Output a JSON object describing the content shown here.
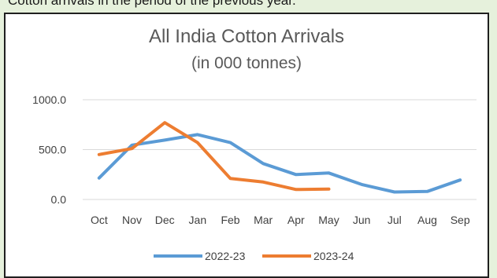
{
  "page": {
    "top_text": "Cotton arrivals in the period of the previous year."
  },
  "chart_data": {
    "type": "line",
    "title": "All India Cotton Arrivals",
    "subtitle": "(in 000 tonnes)",
    "xlabel": "",
    "ylabel": "",
    "categories": [
      "Oct",
      "Nov",
      "Dec",
      "Jan",
      "Feb",
      "Mar",
      "Apr",
      "May",
      "Jun",
      "Jul",
      "Aug",
      "Sep"
    ],
    "ylim": [
      0,
      1000
    ],
    "yticks": [
      "0.0",
      "500.0",
      "1000.0"
    ],
    "grid": true,
    "legend": "bottom",
    "series": [
      {
        "name": "2022-23",
        "color": "#5b9bd5",
        "values": [
          215,
          545,
          595,
          650,
          570,
          360,
          250,
          265,
          150,
          75,
          80,
          195
        ]
      },
      {
        "name": "2023-24",
        "color": "#ed7d31",
        "values": [
          450,
          510,
          770,
          570,
          210,
          175,
          100,
          105,
          null,
          null,
          null,
          null
        ]
      }
    ]
  }
}
